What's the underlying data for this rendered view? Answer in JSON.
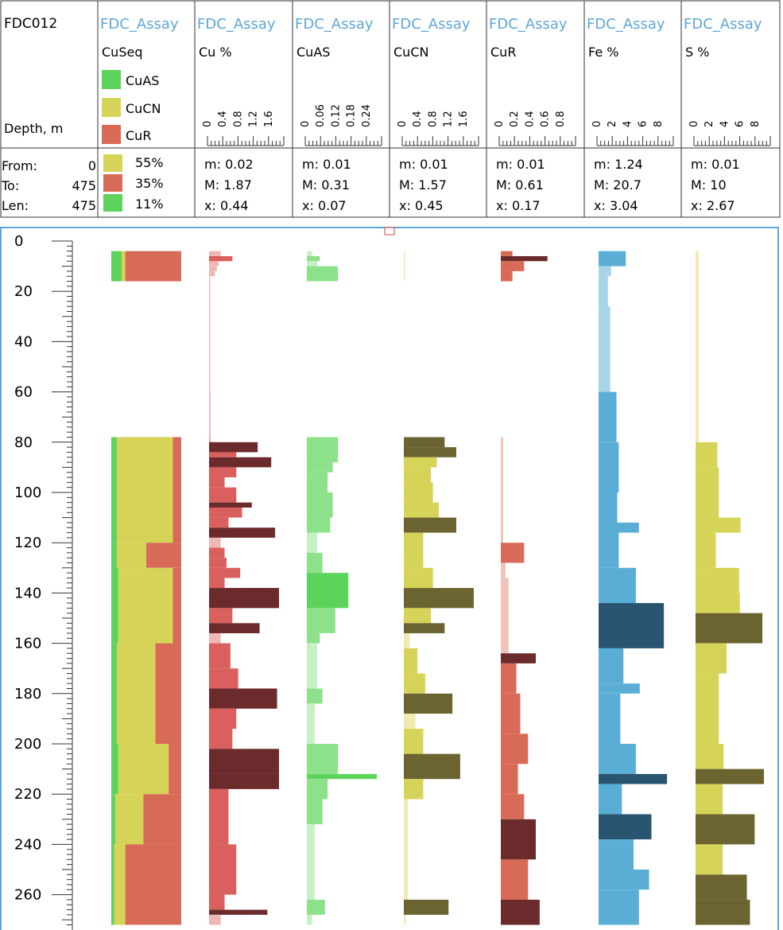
{
  "header": {
    "hole_id": "FDC012",
    "depth_label": "Depth, m",
    "from_label": "From:",
    "from_value": "0",
    "to_label": "To:",
    "to_value": "475",
    "len_label": "Len:",
    "len_value": "475"
  },
  "seq_column": {
    "source": "FDC_Assay",
    "name": "CuSeq",
    "legend": [
      {
        "label": "CuAS",
        "color": "#5cd35a"
      },
      {
        "label": "CuCN",
        "color": "#d6d458"
      },
      {
        "label": "CuR",
        "color": "#d86b58"
      }
    ],
    "summary": [
      {
        "pct": "55%",
        "color": "#d6d458"
      },
      {
        "pct": "35%",
        "color": "#d86b58"
      },
      {
        "pct": "11%",
        "color": "#5cd35a"
      }
    ]
  },
  "columns": [
    {
      "source": "FDC_Assay",
      "name": "Cu %",
      "ticks": [
        "0",
        "0.4",
        "0.8",
        "1.2",
        "1.6"
      ],
      "axis_max": 1.8,
      "min": "m: 0.02",
      "max": "M: 1.87",
      "mean": "x: 0.44",
      "colors": [
        "#f0b8b4",
        "#d9605c",
        "#6b2a2c"
      ]
    },
    {
      "source": "FDC_Assay",
      "name": "CuAS",
      "ticks": [
        "0",
        "0.06",
        "0.12",
        "0.18",
        "0.24"
      ],
      "axis_max": 0.27,
      "min": "m: 0.01",
      "max": "M: 0.31",
      "mean": "x: 0.07",
      "colors": [
        "#c8f0c6",
        "#8ee18b",
        "#5cd35a"
      ]
    },
    {
      "source": "FDC_Assay",
      "name": "CuCN",
      "ticks": [
        "0",
        "0.4",
        "0.8",
        "1.2",
        "1.6"
      ],
      "axis_max": 1.8,
      "min": "m: 0.01",
      "max": "M: 1.57",
      "mean": "x: 0.45",
      "colors": [
        "#eeeab0",
        "#d6d458",
        "#6b6430"
      ]
    },
    {
      "source": "FDC_Assay",
      "name": "CuR",
      "ticks": [
        "0",
        "0.2",
        "0.4",
        "0.6",
        "0.8"
      ],
      "axis_max": 0.9,
      "min": "m: 0.01",
      "max": "M: 0.61",
      "mean": "x: 0.17",
      "colors": [
        "#f0c2ba",
        "#d86b58",
        "#6b2a2c"
      ]
    },
    {
      "source": "FDC_Assay",
      "name": "Fe %",
      "ticks": [
        "0",
        "2",
        "4",
        "6",
        "8"
      ],
      "axis_max": 9,
      "min": "m: 1.24",
      "max": "M: 20.7",
      "mean": "x: 3.04",
      "colors": [
        "#a8d4ea",
        "#5aaed6",
        "#2a5570"
      ]
    },
    {
      "source": "FDC_Assay",
      "name": "S %",
      "ticks": [
        "0",
        "2",
        "4",
        "6",
        "8"
      ],
      "axis_max": 9,
      "min": "m: 0.01",
      "max": "M: 10",
      "mean": "x: 2.67",
      "colors": [
        "#eeeab0",
        "#d6d458",
        "#6b6430"
      ]
    }
  ],
  "chart_data": {
    "type": "bar",
    "orientation": "horizontal-strip-log",
    "ylabel": "Depth, m",
    "ylim": [
      0,
      272
    ],
    "depth_ticks": [
      0,
      20,
      40,
      60,
      80,
      100,
      120,
      140,
      160,
      180,
      200,
      220,
      240,
      260
    ],
    "cuseq_intervals": [
      {
        "from": 4,
        "to": 16,
        "CuAS": 0.15,
        "CuCN": 0.05,
        "CuR": 0.8
      },
      {
        "from": 78,
        "to": 120,
        "CuAS": 0.08,
        "CuCN": 0.8,
        "CuR": 0.12
      },
      {
        "from": 120,
        "to": 130,
        "CuAS": 0.08,
        "CuCN": 0.42,
        "CuR": 0.5
      },
      {
        "from": 130,
        "to": 160,
        "CuAS": 0.1,
        "CuCN": 0.78,
        "CuR": 0.12
      },
      {
        "from": 160,
        "to": 200,
        "CuAS": 0.08,
        "CuCN": 0.55,
        "CuR": 0.37
      },
      {
        "from": 200,
        "to": 220,
        "CuAS": 0.1,
        "CuCN": 0.72,
        "CuR": 0.18
      },
      {
        "from": 220,
        "to": 240,
        "CuAS": 0.06,
        "CuCN": 0.4,
        "CuR": 0.54
      },
      {
        "from": 240,
        "to": 272,
        "CuAS": 0.04,
        "CuCN": 0.16,
        "CuR": 0.8
      }
    ],
    "series": [
      {
        "name": "Cu %",
        "intervals": [
          [
            4,
            6,
            0.3
          ],
          [
            6,
            8,
            0.6
          ],
          [
            8,
            10,
            0.25
          ],
          [
            10,
            12,
            0.2
          ],
          [
            12,
            14,
            0.15
          ],
          [
            14,
            60,
            0.02
          ],
          [
            60,
            78,
            0.04
          ],
          [
            78,
            80,
            0.05
          ],
          [
            80,
            84,
            1.25
          ],
          [
            84,
            86,
            0.7
          ],
          [
            86,
            90,
            1.6
          ],
          [
            90,
            94,
            0.7
          ],
          [
            94,
            98,
            0.4
          ],
          [
            98,
            104,
            0.7
          ],
          [
            104,
            106,
            1.1
          ],
          [
            106,
            110,
            0.85
          ],
          [
            110,
            114,
            0.5
          ],
          [
            114,
            118,
            1.7
          ],
          [
            118,
            122,
            0.3
          ],
          [
            122,
            126,
            0.4
          ],
          [
            126,
            130,
            0.45
          ],
          [
            130,
            134,
            0.8
          ],
          [
            134,
            138,
            0.4
          ],
          [
            138,
            146,
            1.85
          ],
          [
            146,
            152,
            0.6
          ],
          [
            152,
            156,
            1.3
          ],
          [
            156,
            160,
            0.3
          ],
          [
            160,
            170,
            0.55
          ],
          [
            170,
            178,
            0.75
          ],
          [
            178,
            186,
            1.75
          ],
          [
            186,
            194,
            0.7
          ],
          [
            194,
            202,
            0.6
          ],
          [
            202,
            212,
            1.8
          ],
          [
            212,
            218,
            1.8
          ],
          [
            218,
            240,
            0.5
          ],
          [
            240,
            260,
            0.7
          ],
          [
            260,
            266,
            0.4
          ],
          [
            266,
            268,
            1.5
          ],
          [
            268,
            272,
            0.3
          ]
        ]
      },
      {
        "name": "CuAS",
        "intervals": [
          [
            4,
            6,
            0.02
          ],
          [
            6,
            8,
            0.05
          ],
          [
            8,
            10,
            0.04
          ],
          [
            10,
            16,
            0.12
          ],
          [
            78,
            88,
            0.12
          ],
          [
            88,
            92,
            0.1
          ],
          [
            92,
            100,
            0.08
          ],
          [
            100,
            110,
            0.1
          ],
          [
            110,
            116,
            0.09
          ],
          [
            116,
            124,
            0.04
          ],
          [
            124,
            132,
            0.06
          ],
          [
            132,
            146,
            0.16
          ],
          [
            146,
            156,
            0.11
          ],
          [
            156,
            160,
            0.05
          ],
          [
            160,
            178,
            0.04
          ],
          [
            178,
            184,
            0.06
          ],
          [
            184,
            200,
            0.03
          ],
          [
            200,
            212,
            0.12
          ],
          [
            212,
            214,
            0.31
          ],
          [
            214,
            222,
            0.08
          ],
          [
            222,
            232,
            0.06
          ],
          [
            232,
            262,
            0.03
          ],
          [
            262,
            268,
            0.07
          ],
          [
            268,
            272,
            0.02
          ]
        ]
      },
      {
        "name": "CuCN",
        "intervals": [
          [
            4,
            16,
            0.02
          ],
          [
            78,
            82,
            1.05
          ],
          [
            82,
            86,
            1.35
          ],
          [
            86,
            90,
            0.85
          ],
          [
            90,
            96,
            0.7
          ],
          [
            96,
            104,
            0.75
          ],
          [
            104,
            110,
            0.9
          ],
          [
            110,
            116,
            1.35
          ],
          [
            116,
            124,
            0.5
          ],
          [
            124,
            130,
            0.5
          ],
          [
            130,
            138,
            0.75
          ],
          [
            138,
            146,
            1.85
          ],
          [
            146,
            152,
            0.7
          ],
          [
            152,
            156,
            1.05
          ],
          [
            156,
            162,
            0.15
          ],
          [
            162,
            172,
            0.35
          ],
          [
            172,
            180,
            0.55
          ],
          [
            180,
            188,
            1.25
          ],
          [
            188,
            194,
            0.3
          ],
          [
            194,
            204,
            0.5
          ],
          [
            204,
            214,
            1.45
          ],
          [
            214,
            222,
            0.5
          ],
          [
            222,
            262,
            0.1
          ],
          [
            262,
            268,
            1.15
          ],
          [
            268,
            272,
            0.05
          ]
        ]
      },
      {
        "name": "CuR",
        "intervals": [
          [
            4,
            6,
            0.15
          ],
          [
            6,
            8,
            0.6
          ],
          [
            8,
            12,
            0.3
          ],
          [
            12,
            16,
            0.15
          ],
          [
            78,
            120,
            0.03
          ],
          [
            120,
            128,
            0.3
          ],
          [
            128,
            134,
            0.06
          ],
          [
            134,
            164,
            0.1
          ],
          [
            164,
            168,
            0.45
          ],
          [
            168,
            180,
            0.2
          ],
          [
            180,
            196,
            0.25
          ],
          [
            196,
            208,
            0.35
          ],
          [
            208,
            220,
            0.22
          ],
          [
            220,
            230,
            0.3
          ],
          [
            230,
            246,
            0.45
          ],
          [
            246,
            262,
            0.35
          ],
          [
            262,
            272,
            0.5
          ]
        ]
      },
      {
        "name": "Fe %",
        "intervals": [
          [
            4,
            10,
            3.5
          ],
          [
            10,
            14,
            1.6
          ],
          [
            14,
            26,
            1.2
          ],
          [
            26,
            60,
            1.5
          ],
          [
            60,
            80,
            2.3
          ],
          [
            80,
            100,
            2.6
          ],
          [
            100,
            112,
            2.4
          ],
          [
            112,
            116,
            5.2
          ],
          [
            116,
            130,
            2.6
          ],
          [
            130,
            144,
            4.8
          ],
          [
            144,
            162,
            8.4
          ],
          [
            162,
            176,
            3.2
          ],
          [
            176,
            180,
            5.3
          ],
          [
            180,
            200,
            2.8
          ],
          [
            200,
            212,
            4.8
          ],
          [
            212,
            216,
            8.8
          ],
          [
            216,
            228,
            3.0
          ],
          [
            228,
            238,
            6.8
          ],
          [
            238,
            250,
            4.5
          ],
          [
            250,
            258,
            6.5
          ],
          [
            258,
            272,
            5.2
          ]
        ]
      },
      {
        "name": "S %",
        "intervals": [
          [
            4,
            80,
            0.4
          ],
          [
            80,
            90,
            2.8
          ],
          [
            90,
            110,
            3.0
          ],
          [
            110,
            116,
            5.8
          ],
          [
            116,
            130,
            2.6
          ],
          [
            130,
            140,
            5.6
          ],
          [
            140,
            148,
            5.7
          ],
          [
            148,
            160,
            8.6
          ],
          [
            160,
            172,
            4.0
          ],
          [
            172,
            200,
            3.0
          ],
          [
            200,
            210,
            3.6
          ],
          [
            210,
            216,
            8.8
          ],
          [
            216,
            228,
            3.5
          ],
          [
            228,
            240,
            7.6
          ],
          [
            240,
            252,
            3.5
          ],
          [
            252,
            262,
            6.6
          ],
          [
            262,
            272,
            7.0
          ]
        ]
      }
    ]
  }
}
